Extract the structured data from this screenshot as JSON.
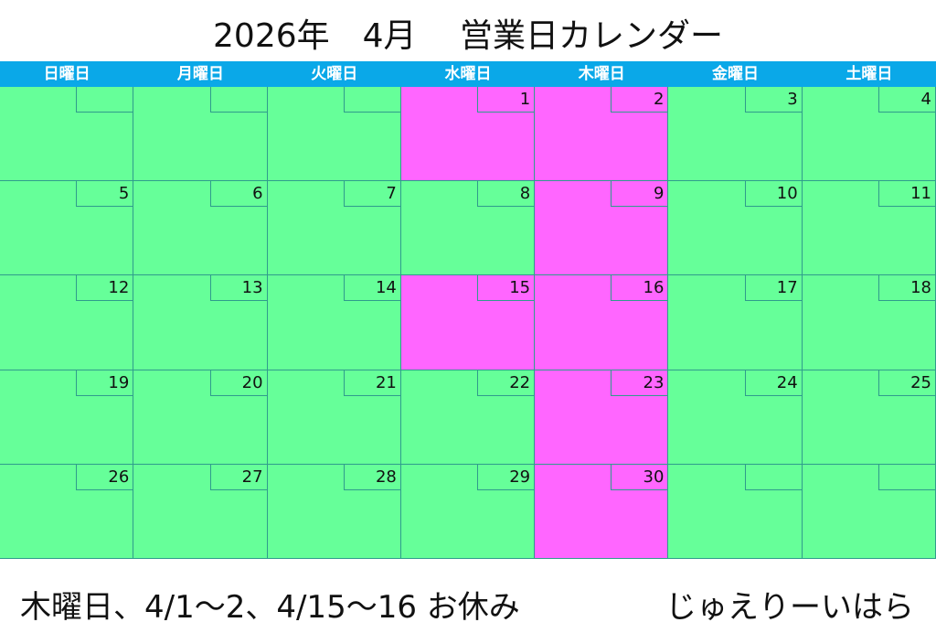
{
  "title": "2026年　4月　 営業日カレンダー",
  "weekdays": [
    "日曜日",
    "月曜日",
    "火曜日",
    "水曜日",
    "木曜日",
    "金曜日",
    "土曜日"
  ],
  "colors": {
    "open": "#66ff99",
    "closed": "#ff66ff",
    "header": "#0aa8e8"
  },
  "days": [
    "",
    "",
    "",
    "1",
    "2",
    "3",
    "4",
    "5",
    "6",
    "7",
    "8",
    "9",
    "10",
    "11",
    "12",
    "13",
    "14",
    "15",
    "16",
    "17",
    "18",
    "19",
    "20",
    "21",
    "22",
    "23",
    "24",
    "25",
    "26",
    "27",
    "28",
    "29",
    "30",
    "",
    ""
  ],
  "closed_days": [
    "1",
    "2",
    "9",
    "15",
    "16",
    "23",
    "30"
  ],
  "footer": "木曜日、4/1～2、4/15～16 お休み",
  "signature": "じゅえりーいはら"
}
